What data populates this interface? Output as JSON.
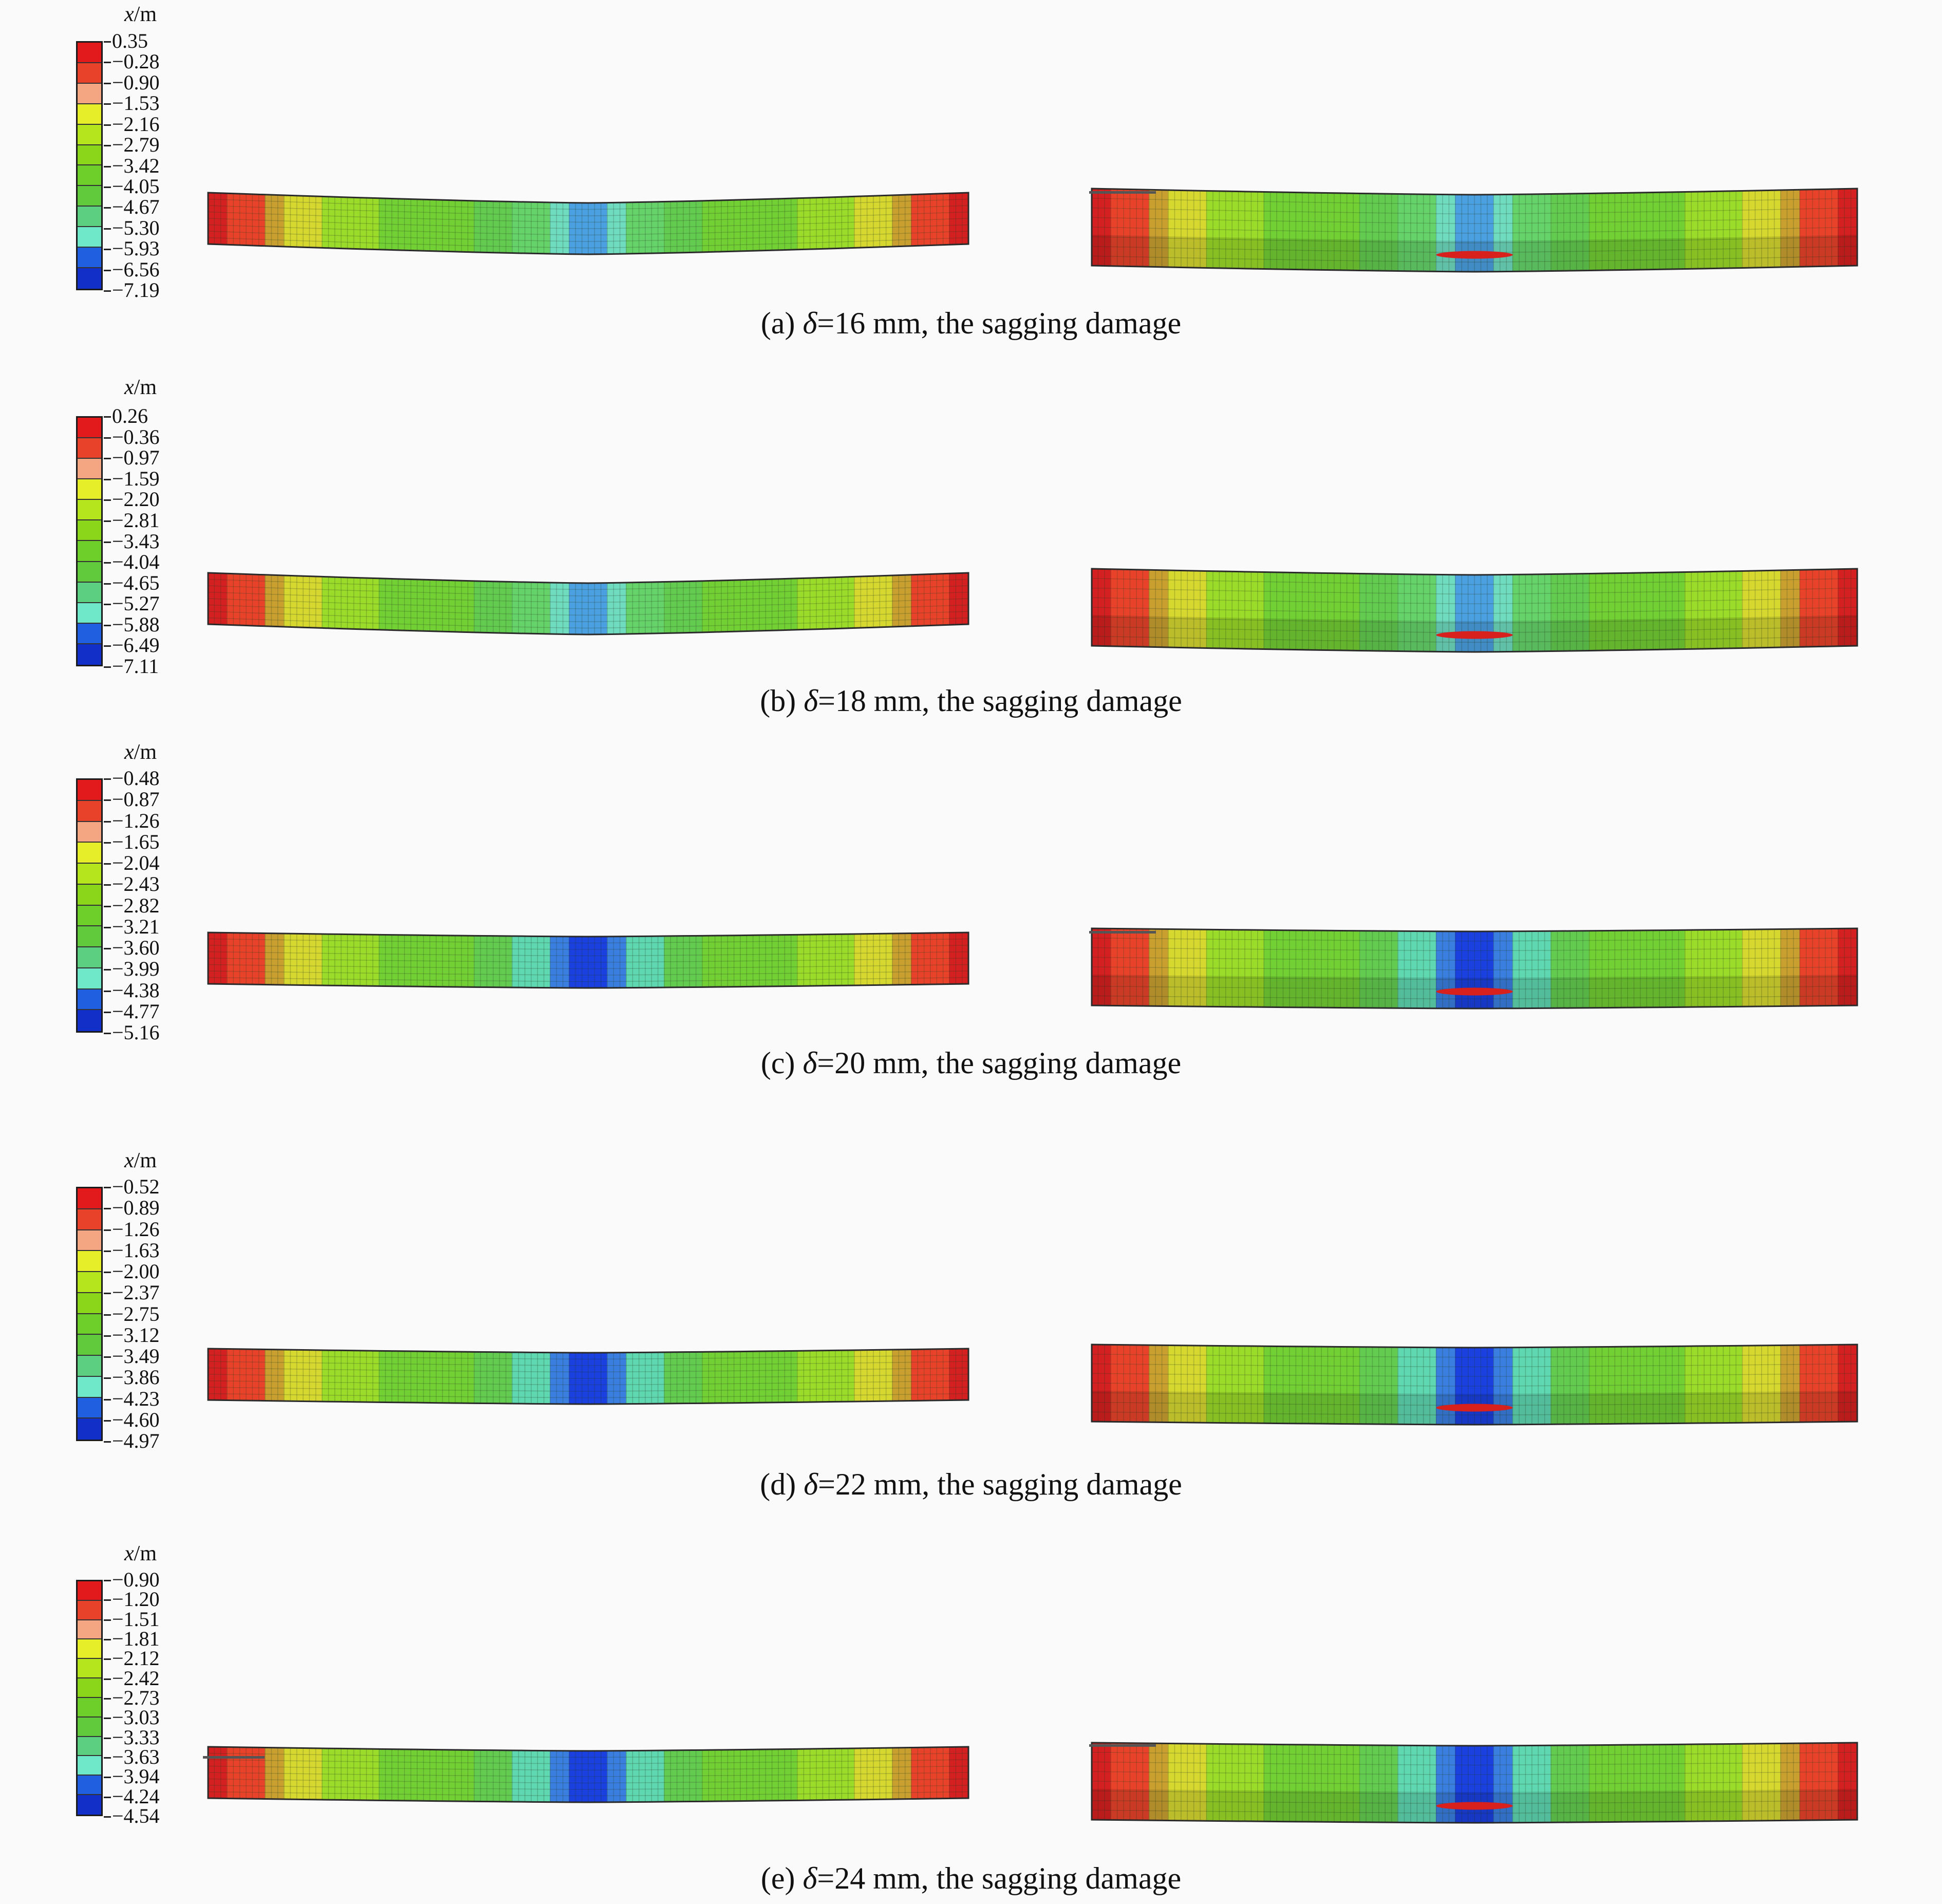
{
  "legend_title_var": "x",
  "legend_title_unit": "/m",
  "colors": [
    "#e31a1c",
    "#e8432a",
    "#f4a582",
    "#e6ee2a",
    "#b5e61d",
    "#8bd61a",
    "#6fcf2a",
    "#61c93c",
    "#5ccf80",
    "#6ee8c8",
    "#1f5fe0",
    "#1230c8"
  ],
  "panels": [
    {
      "id": "a",
      "ticks": [
        "0.35",
        "−0.28",
        "−0.90",
        "−1.53",
        "−2.16",
        "−2.79",
        "−3.42",
        "−4.05",
        "−4.67",
        "−5.30",
        "−5.93",
        "−6.56",
        "−7.19"
      ],
      "caption_prefix": "(a) ",
      "caption_delta": "δ",
      "caption_rest": "=16 mm, the sagging damage"
    },
    {
      "id": "b",
      "ticks": [
        "0.26",
        "−0.36",
        "−0.97",
        "−1.59",
        "−2.20",
        "−2.81",
        "−3.43",
        "−4.04",
        "−4.65",
        "−5.27",
        "−5.88",
        "−6.49",
        "−7.11"
      ],
      "caption_prefix": "(b) ",
      "caption_delta": "δ",
      "caption_rest": "=18 mm, the sagging damage"
    },
    {
      "id": "c",
      "ticks": [
        "−0.48",
        "−0.87",
        "−1.26",
        "−1.65",
        "−2.04",
        "−2.43",
        "−2.82",
        "−3.21",
        "−3.60",
        "−3.99",
        "−4.38",
        "−4.77",
        "−5.16"
      ],
      "caption_prefix": "(c) ",
      "caption_delta": "δ",
      "caption_rest": "=20 mm, the sagging damage"
    },
    {
      "id": "d",
      "ticks": [
        "−0.52",
        "−0.89",
        "−1.26",
        "−1.63",
        "−2.00",
        "−2.37",
        "−2.75",
        "−3.12",
        "−3.49",
        "−3.86",
        "−4.23",
        "−4.60",
        "−4.97"
      ],
      "caption_prefix": "(d) ",
      "caption_delta": "δ",
      "caption_rest": "=22 mm, the sagging damage"
    },
    {
      "id": "e",
      "ticks": [
        "−0.90",
        "−1.20",
        "−1.51",
        "−1.81",
        "−2.12",
        "−2.42",
        "−2.73",
        "−3.03",
        "−3.33",
        "−3.63",
        "−3.94",
        "−4.24",
        "−4.54"
      ],
      "caption_prefix": "(e) ",
      "caption_delta": "δ",
      "caption_rest": "=24 mm, the sagging damage"
    }
  ]
}
